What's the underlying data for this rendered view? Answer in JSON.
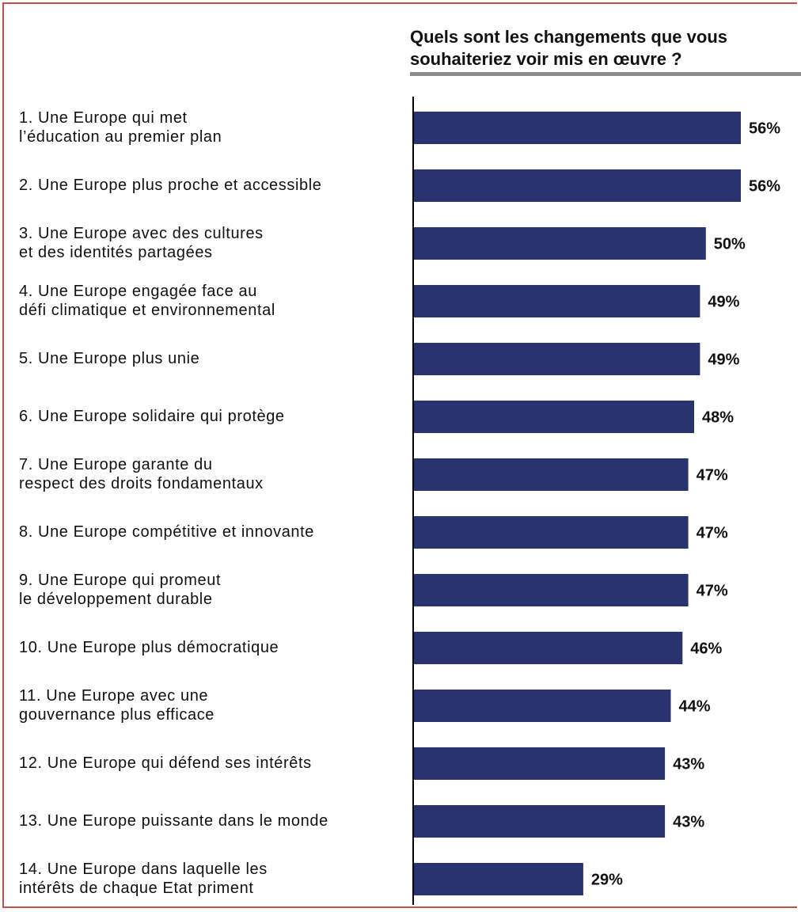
{
  "colors": {
    "bar": "#283370",
    "border": "#c0504d",
    "rule": "#8c8c8c",
    "axis": "#000000"
  },
  "chart_data": {
    "type": "bar",
    "orientation": "horizontal",
    "title": "Quels sont les changements que vous souhaiteriez voir mis en œuvre ?",
    "categories": [
      "1. Une Europe qui met\nl’éducation au premier plan",
      "2. Une Europe plus proche et accessible",
      "3. Une Europe avec des cultures\net des identités partagées",
      "4. Une Europe engagée face au\ndéfi climatique et environnemental",
      "5. Une Europe plus unie",
      "6. Une Europe solidaire qui protège",
      "7. Une Europe garante du\nrespect des droits fondamentaux",
      "8. Une Europe compétitive et innovante",
      "9. Une Europe qui promeut\nle développement durable",
      "10. Une Europe plus démocratique",
      "11. Une Europe avec une\ngouvernance plus efficace",
      "12. Une Europe qui défend ses intérêts",
      "13. Une Europe puissante dans le monde",
      "14. Une Europe dans laquelle les\nintérêts de chaque Etat priment"
    ],
    "values": [
      56,
      56,
      50,
      49,
      49,
      48,
      47,
      47,
      47,
      46,
      44,
      43,
      43,
      29
    ],
    "value_labels": [
      "56%",
      "56%",
      "50%",
      "49%",
      "49%",
      "48%",
      "47%",
      "47%",
      "47%",
      "46%",
      "44%",
      "43%",
      "43%",
      "29%"
    ],
    "xlim": [
      0,
      56
    ],
    "grid": false,
    "legend": "none"
  }
}
